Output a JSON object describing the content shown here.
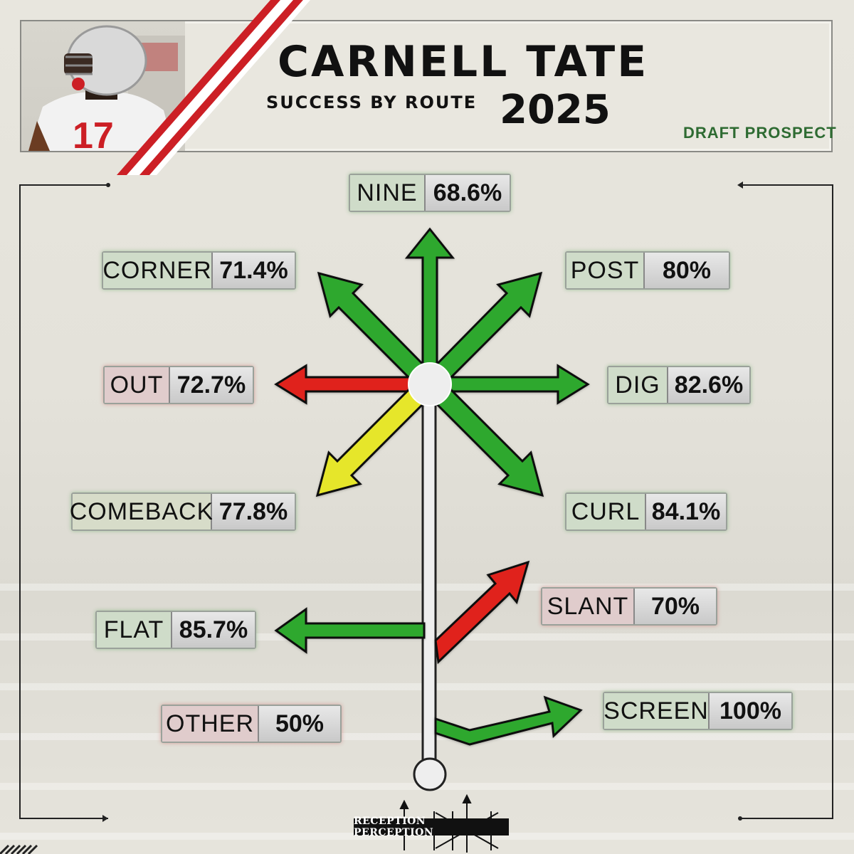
{
  "header": {
    "first_name": "CARNELL",
    "last_name": "TATE",
    "subtitle": "SUCCESS BY ROUTE",
    "year": "2025",
    "tag": "DRAFT PROSPECT",
    "jersey_number": "17"
  },
  "routes": [
    {
      "key": "nine",
      "name": "NINE",
      "value": "68.6%",
      "color": "green"
    },
    {
      "key": "corner",
      "name": "CORNER",
      "value": "71.4%",
      "color": "green"
    },
    {
      "key": "post",
      "name": "POST",
      "value": "80%",
      "color": "green"
    },
    {
      "key": "out",
      "name": "OUT",
      "value": "72.7%",
      "color": "red"
    },
    {
      "key": "dig",
      "name": "DIG",
      "value": "82.6%",
      "color": "green"
    },
    {
      "key": "comeback",
      "name": "COMEBACK",
      "value": "77.8%",
      "color": "yellow"
    },
    {
      "key": "curl",
      "name": "CURL",
      "value": "84.1%",
      "color": "green"
    },
    {
      "key": "slant",
      "name": "SLANT",
      "value": "70%",
      "color": "red"
    },
    {
      "key": "flat",
      "name": "FLAT",
      "value": "85.7%",
      "color": "green"
    },
    {
      "key": "other",
      "name": "OTHER",
      "value": "50%",
      "color": "red"
    },
    {
      "key": "screen",
      "name": "SCREEN",
      "value": "100%",
      "color": "green"
    }
  ],
  "colors": {
    "green": "#2ea82e",
    "red": "#e0241e",
    "yellow": "#e6e62a",
    "brand_red": "#cc1f25",
    "draft_green": "#2e6b32"
  },
  "footer": {
    "logo_text": "RECEPTION PERCEPTION"
  }
}
